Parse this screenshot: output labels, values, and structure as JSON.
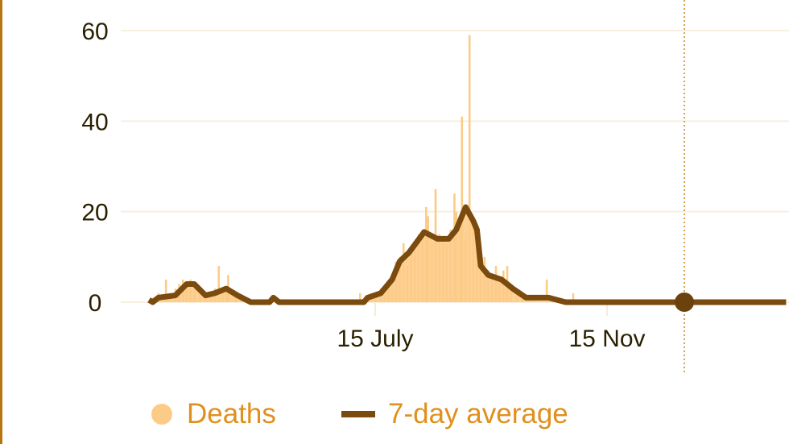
{
  "chart_data": {
    "type": "bar+line",
    "yticks": [
      "0",
      "20",
      "40",
      "60"
    ],
    "ylim": [
      0,
      60
    ],
    "xticks": [
      {
        "date": "07-15",
        "label": "15 July"
      },
      {
        "date": "11-15",
        "label": "15 Nov"
      }
    ],
    "xlim": [
      "03-17",
      "02-18"
    ],
    "grid": true,
    "legend_placement": "bottom",
    "legend": {
      "bars": "Deaths",
      "line": "7-day average"
    },
    "colors": {
      "bars": "#fdcb88",
      "line": "#7a4a0e",
      "legend_text": "#e0901c",
      "grid": "#f8efe0",
      "marker": "#6b420c"
    },
    "marker": {
      "date": "12-26",
      "value": 0
    },
    "deaths": [
      [
        "03-19",
        1
      ],
      [
        "03-22",
        2
      ],
      [
        "03-26",
        5
      ],
      [
        "03-28",
        2
      ],
      [
        "03-31",
        3
      ],
      [
        "04-02",
        4
      ],
      [
        "04-04",
        5
      ],
      [
        "04-06",
        4
      ],
      [
        "04-08",
        5
      ],
      [
        "04-10",
        3
      ],
      [
        "04-13",
        2
      ],
      [
        "04-16",
        1
      ],
      [
        "04-19",
        2
      ],
      [
        "04-21",
        3
      ],
      [
        "04-23",
        8
      ],
      [
        "04-25",
        2
      ],
      [
        "04-27",
        3
      ],
      [
        "04-28",
        6
      ],
      [
        "05-02",
        2
      ],
      [
        "05-05",
        1
      ],
      [
        "05-22",
        1
      ],
      [
        "07-07",
        2
      ],
      [
        "07-12",
        1
      ],
      [
        "07-15",
        2
      ],
      [
        "07-18",
        3
      ],
      [
        "07-20",
        2
      ],
      [
        "07-22",
        4
      ],
      [
        "07-24",
        6
      ],
      [
        "07-26",
        9
      ],
      [
        "07-28",
        10
      ],
      [
        "07-30",
        13
      ],
      [
        "08-01",
        8
      ],
      [
        "08-03",
        12
      ],
      [
        "08-05",
        13
      ],
      [
        "08-07",
        15
      ],
      [
        "08-09",
        16
      ],
      [
        "08-11",
        21
      ],
      [
        "08-12",
        19
      ],
      [
        "08-14",
        13
      ],
      [
        "08-16",
        25
      ],
      [
        "08-18",
        15
      ],
      [
        "08-20",
        14
      ],
      [
        "08-22",
        13
      ],
      [
        "08-24",
        16
      ],
      [
        "08-26",
        24
      ],
      [
        "08-27",
        20
      ],
      [
        "08-29",
        18
      ],
      [
        "08-30",
        41
      ],
      [
        "09-01",
        14
      ],
      [
        "09-03",
        59
      ],
      [
        "09-05",
        17
      ],
      [
        "09-07",
        15
      ],
      [
        "09-09",
        8
      ],
      [
        "09-11",
        10
      ],
      [
        "09-13",
        7
      ],
      [
        "09-15",
        6
      ],
      [
        "09-17",
        8
      ],
      [
        "09-19",
        5
      ],
      [
        "09-21",
        7
      ],
      [
        "09-23",
        8
      ],
      [
        "09-25",
        4
      ],
      [
        "09-28",
        3
      ],
      [
        "10-01",
        2
      ],
      [
        "10-05",
        1
      ],
      [
        "10-14",
        5
      ],
      [
        "10-28",
        2
      ]
    ],
    "average": [
      [
        "03-17",
        0.5
      ],
      [
        "03-19",
        0
      ],
      [
        "03-22",
        1
      ],
      [
        "03-31",
        1.5
      ],
      [
        "04-06",
        4
      ],
      [
        "04-10",
        4
      ],
      [
        "04-16",
        1.5
      ],
      [
        "04-21",
        2
      ],
      [
        "04-27",
        3
      ],
      [
        "05-03",
        1.5
      ],
      [
        "05-10",
        0
      ],
      [
        "05-20",
        0
      ],
      [
        "05-22",
        1
      ],
      [
        "05-25",
        0
      ],
      [
        "07-09",
        0
      ],
      [
        "07-11",
        1
      ],
      [
        "07-18",
        2
      ],
      [
        "07-24",
        5
      ],
      [
        "07-28",
        9
      ],
      [
        "08-02",
        11
      ],
      [
        "08-10",
        15.5
      ],
      [
        "08-17",
        14
      ],
      [
        "08-23",
        14
      ],
      [
        "08-27",
        16
      ],
      [
        "09-01",
        21
      ],
      [
        "09-05",
        18
      ],
      [
        "09-07",
        16
      ],
      [
        "09-09",
        8
      ],
      [
        "09-13",
        6
      ],
      [
        "09-20",
        5
      ],
      [
        "09-26",
        3
      ],
      [
        "10-03",
        1
      ],
      [
        "10-15",
        1
      ],
      [
        "10-24",
        0
      ],
      [
        "12-26",
        0
      ],
      [
        "02-18",
        0
      ]
    ]
  }
}
